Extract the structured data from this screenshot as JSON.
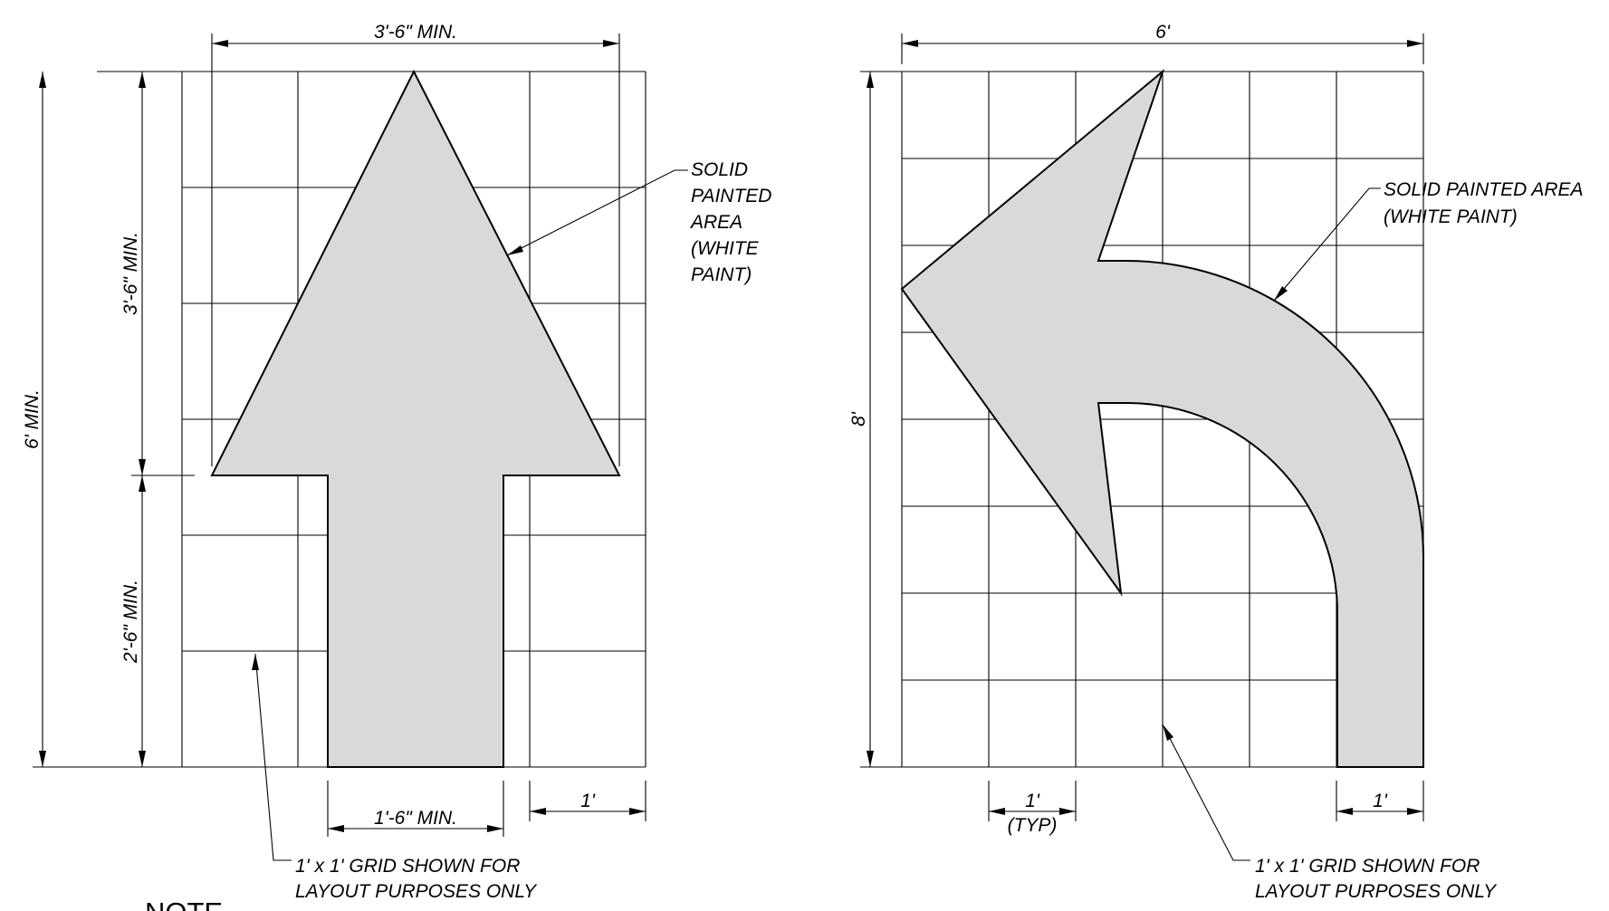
{
  "straight_arrow": {
    "dim_top": "3'-6\" MIN.",
    "dim_overall": "6' MIN.",
    "dim_head": "3'-6\" MIN.",
    "dim_stem_height": "2'-6\" MIN.",
    "dim_stem_width": "1'-6\" MIN.",
    "dim_cell": "1'",
    "callout_paint": [
      "SOLID",
      "PAINTED",
      "AREA",
      "(WHITE",
      "PAINT)"
    ],
    "callout_grid": [
      "1' x 1' GRID SHOWN FOR",
      "LAYOUT PURPOSES ONLY"
    ]
  },
  "turn_arrow": {
    "dim_width": "6'",
    "dim_height": "8'",
    "dim_cell": "1'",
    "dim_cell_typ": [
      "1'",
      "(TYP)"
    ],
    "dim_stem": "1'",
    "callout_paint": [
      "SOLID PAINTED AREA",
      "(WHITE PAINT)"
    ],
    "callout_grid": [
      "1' x 1' GRID SHOWN FOR",
      "LAYOUT PURPOSES ONLY"
    ]
  },
  "note_heading": "NOTE",
  "colors": {
    "paint_fill": "#d9d9d9",
    "line": "#000000"
  }
}
